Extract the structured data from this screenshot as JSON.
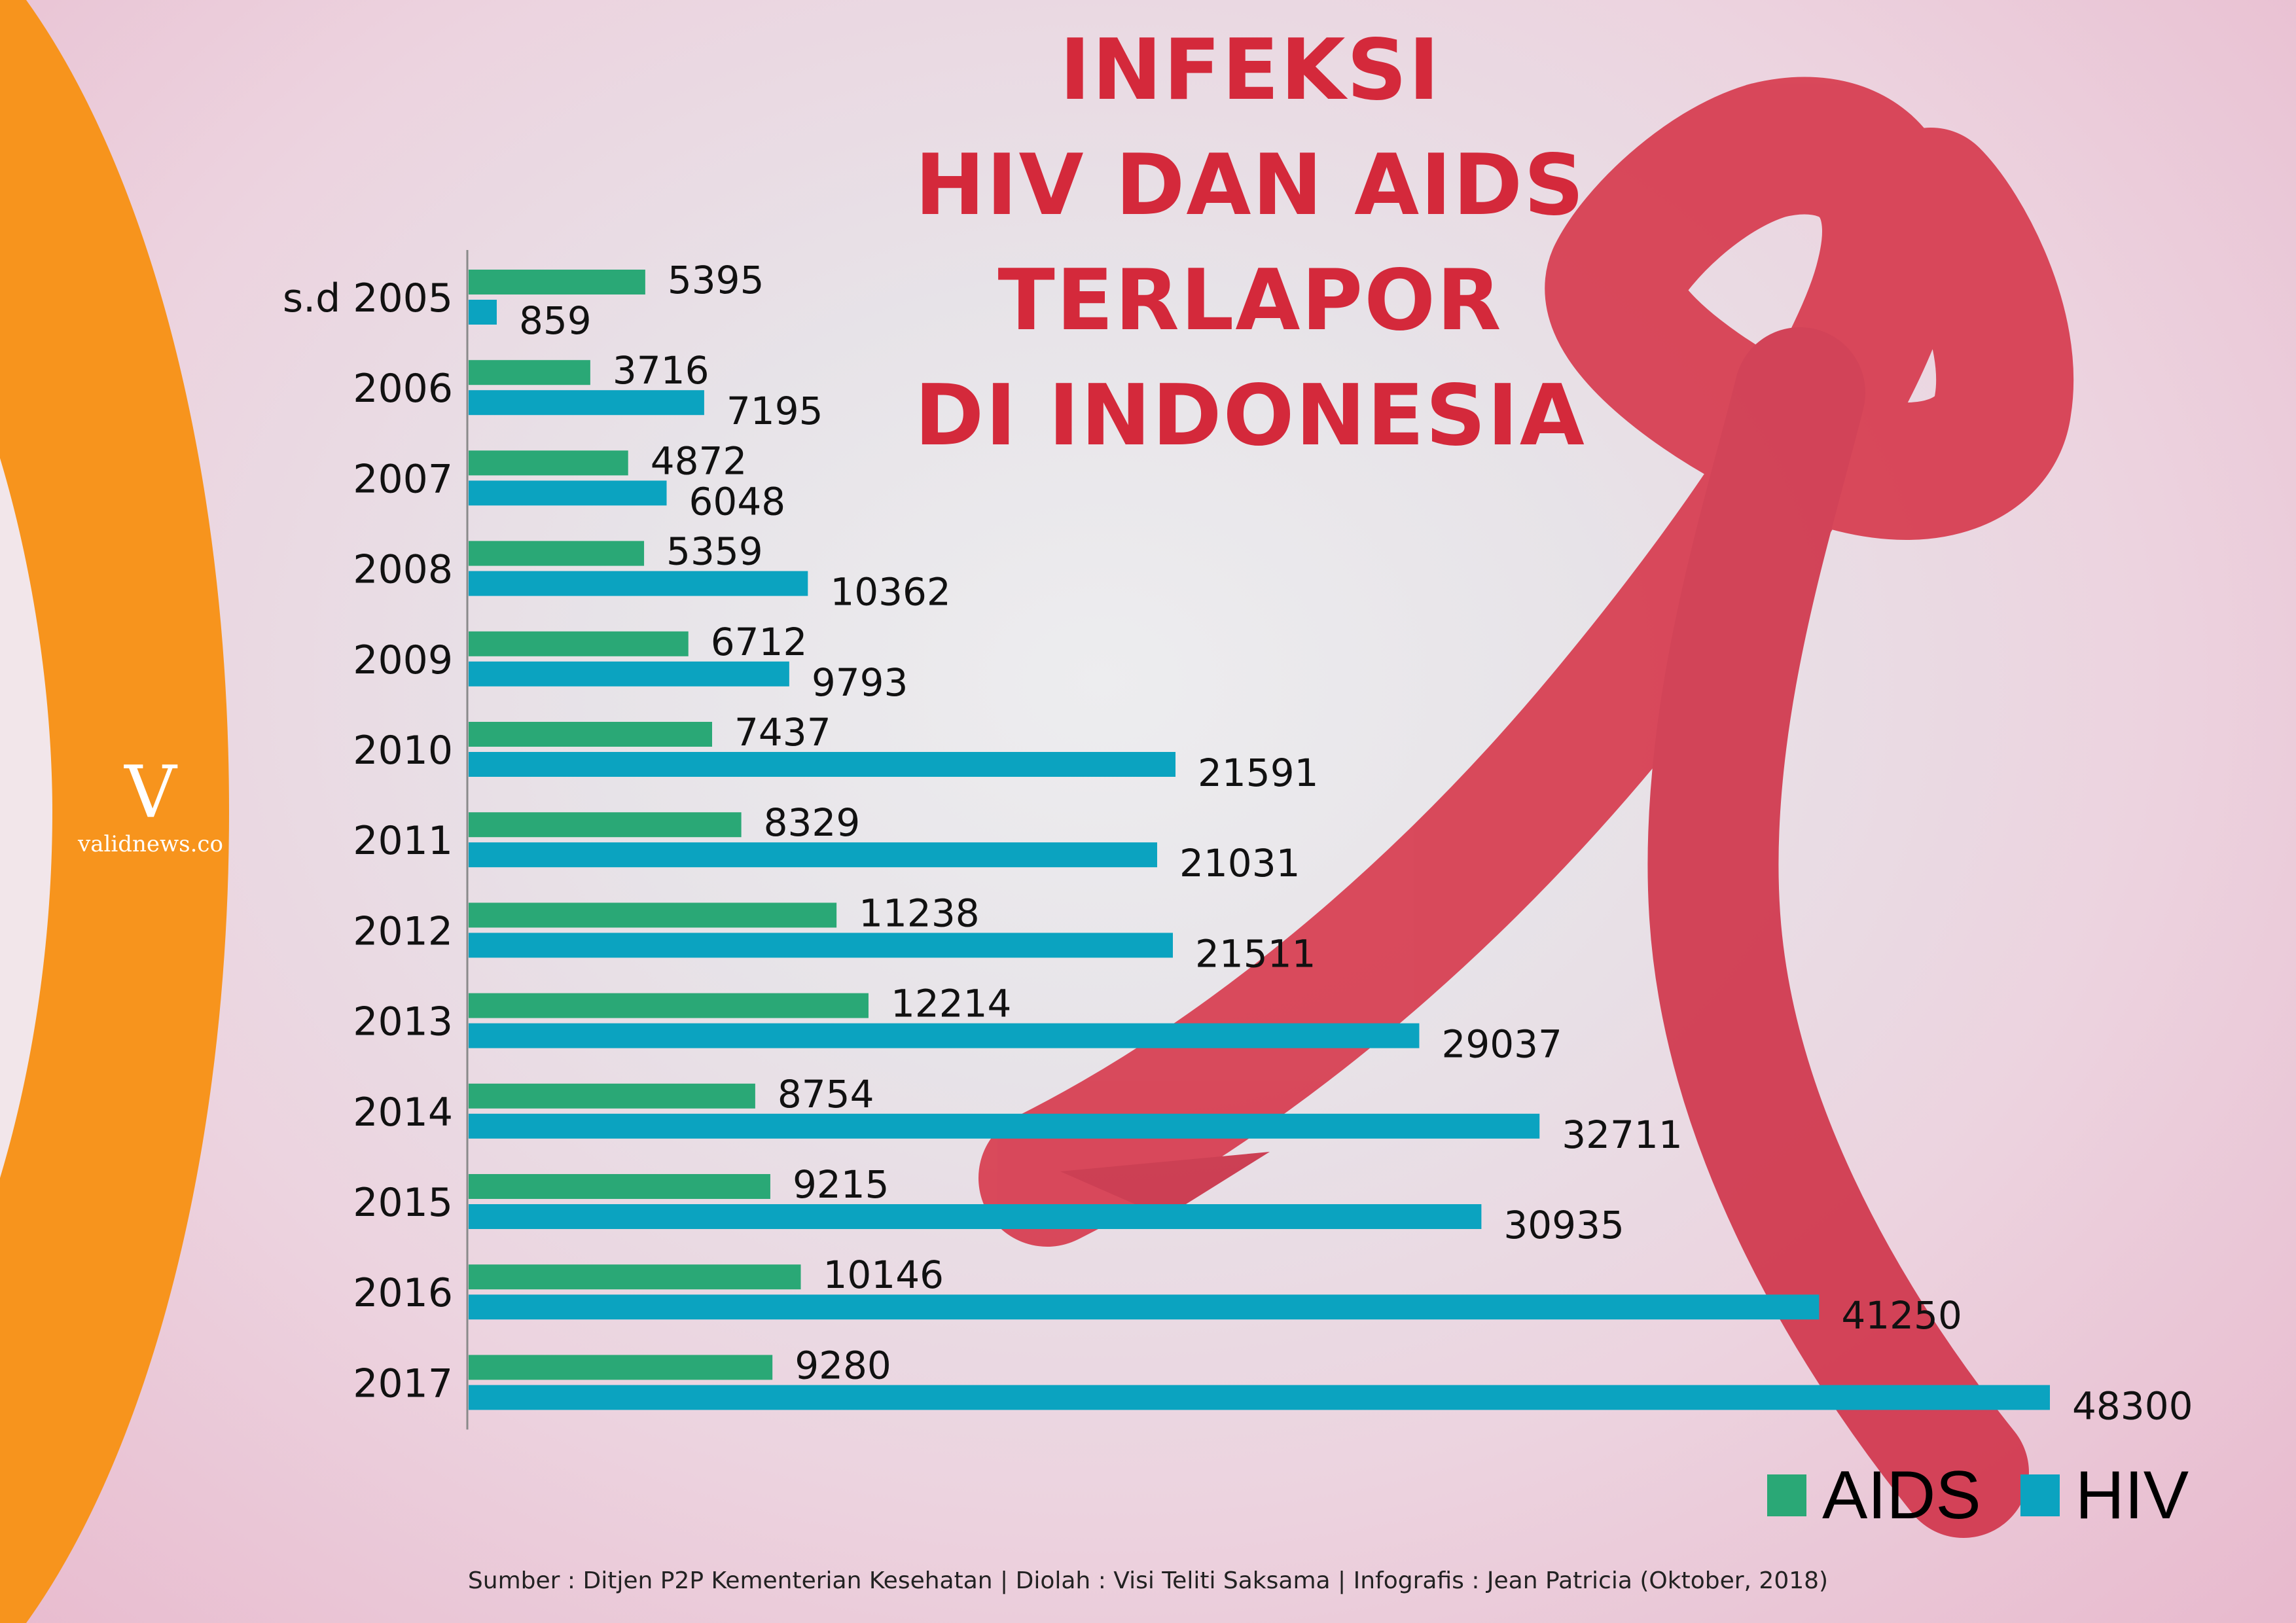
{
  "logo": {
    "mark": "V",
    "text": "validnews.co"
  },
  "title_lines": [
    "INFEKSI",
    "HIV DAN AIDS",
    "TERLAPOR",
    "DI INDONESIA"
  ],
  "colors": {
    "aids": "#2aa876",
    "hiv": "#0ba3c0",
    "title": "#d4293b",
    "accent_orange": "#f7941d",
    "ribbon": "#d63448"
  },
  "chart_data": {
    "type": "bar",
    "orientation": "horizontal",
    "categories": [
      "s.d 2005",
      "2006",
      "2007",
      "2008",
      "2009",
      "2010",
      "2011",
      "2012",
      "2013",
      "2014",
      "2015",
      "2016",
      "2017"
    ],
    "series": [
      {
        "name": "AIDS",
        "values": [
          5395,
          3716,
          4872,
          5359,
          6712,
          7437,
          8329,
          11238,
          12214,
          8754,
          9215,
          10146,
          9280
        ]
      },
      {
        "name": "HIV",
        "values": [
          859,
          7195,
          6048,
          10362,
          9793,
          21591,
          21031,
          21511,
          29037,
          32711,
          30935,
          41250,
          48300
        ]
      }
    ],
    "xlim": [
      0,
      48300
    ],
    "grid": false,
    "legend_position": "bottom-right",
    "title": "INFEKSI HIV DAN AIDS TERLAPOR DI INDONESIA",
    "xlabel": "",
    "ylabel": ""
  },
  "legend": {
    "aids_label": "AIDS",
    "hiv_label": "HIV"
  },
  "footer": "Sumber : Ditjen P2P Kementerian Kesehatan | Diolah : Visi Teliti Saksama | Infografis : Jean Patricia (Oktober, 2018)"
}
